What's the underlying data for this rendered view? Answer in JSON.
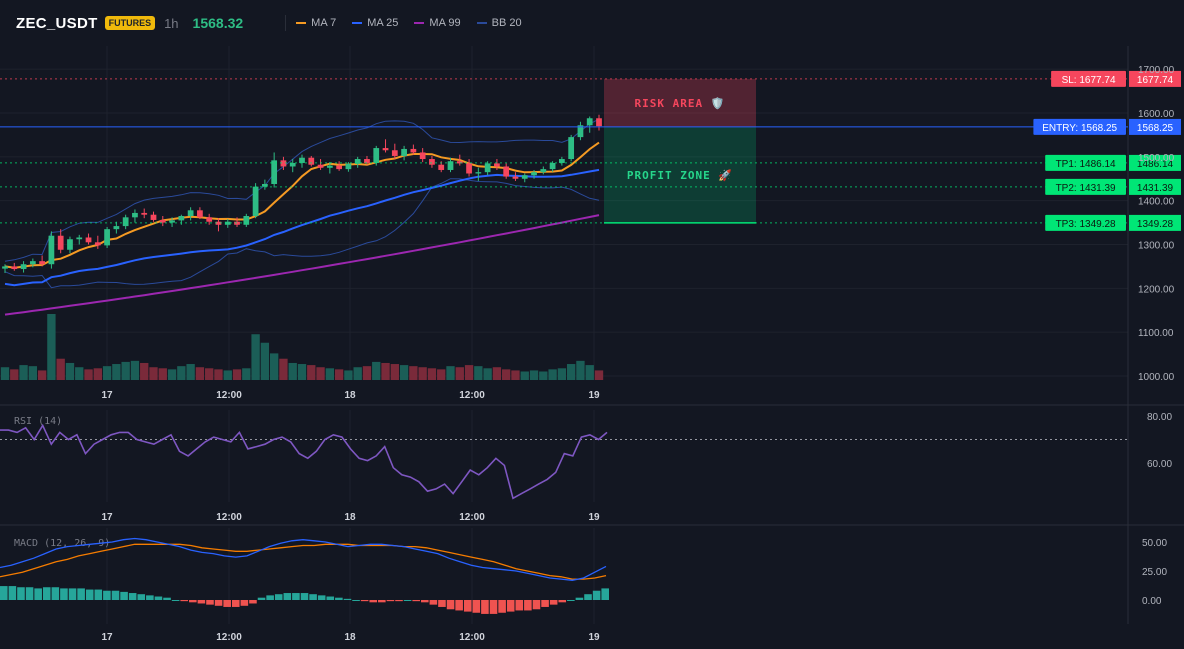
{
  "header": {
    "symbol": "ZEC_USDT",
    "badge": "FUTURES",
    "interval": "1h",
    "last_price": "1568.32",
    "indicators": [
      {
        "name": "MA 7",
        "color": "#f59a23"
      },
      {
        "name": "MA 25",
        "color": "#2962ff"
      },
      {
        "name": "MA 99",
        "color": "#9c27b0"
      },
      {
        "name": "BB 20",
        "color": "#2a4a9a"
      }
    ]
  },
  "colors": {
    "up": "#26a69a",
    "up_candle": "#2ebd85",
    "down": "#f6465d",
    "up_volume": "#1b5e57",
    "down_volume": "#7a2a3a",
    "entry": "#2962ff",
    "sl": "#f6465d",
    "tp": "#00e676",
    "rsi": "#7e57c2",
    "macd": "#2962ff",
    "signal": "#f57c00"
  },
  "trade": {
    "sl_text": "SL: 1677.74",
    "entry_text": "ENTRY: 1568.25",
    "tp1_text": "TP1: 1486.14",
    "tp2_text": "TP2: 1431.39",
    "tp3_text": "TP3: 1349.28",
    "risk_label": "RISK AREA 🛡️",
    "profit_label": "PROFIT ZONE 🚀"
  },
  "chart_data": [
    {
      "type": "candlestick",
      "pane": "price",
      "y_ticks": [
        "1700.00",
        "1600.00",
        "1500.00",
        "1400.00",
        "1300.00",
        "1200.00",
        "1100.00",
        "1000.00"
      ],
      "x_ticks": [
        "17",
        "12:00",
        "18",
        "12:00",
        "19"
      ],
      "ylim": [
        990,
        1710
      ],
      "levels": {
        "sl": 1677.74,
        "entry": 1568.25,
        "tp1": 1486.14,
        "tp2": 1431.39,
        "tp3": 1349.28
      },
      "level_values": {
        "sl": "1677.74",
        "entry": "1568.25",
        "tp1": "1486.14",
        "tp2": "1431.39",
        "tp3": "1349.28"
      },
      "ohlc": [
        [
          1245,
          1255,
          1235,
          1250
        ],
        [
          1250,
          1258,
          1240,
          1244
        ],
        [
          1244,
          1262,
          1236,
          1255
        ],
        [
          1255,
          1268,
          1248,
          1262
        ],
        [
          1262,
          1275,
          1250,
          1255
        ],
        [
          1255,
          1330,
          1245,
          1320
        ],
        [
          1320,
          1335,
          1280,
          1288
        ],
        [
          1288,
          1318,
          1280,
          1312
        ],
        [
          1312,
          1322,
          1300,
          1316
        ],
        [
          1316,
          1325,
          1300,
          1305
        ],
        [
          1305,
          1320,
          1290,
          1298
        ],
        [
          1298,
          1340,
          1292,
          1335
        ],
        [
          1335,
          1352,
          1325,
          1342
        ],
        [
          1342,
          1368,
          1335,
          1362
        ],
        [
          1362,
          1380,
          1350,
          1372
        ],
        [
          1372,
          1382,
          1360,
          1368
        ],
        [
          1368,
          1375,
          1352,
          1356
        ],
        [
          1356,
          1365,
          1342,
          1350
        ],
        [
          1350,
          1362,
          1340,
          1355
        ],
        [
          1355,
          1368,
          1345,
          1365
        ],
        [
          1365,
          1385,
          1355,
          1378
        ],
        [
          1378,
          1385,
          1358,
          1362
        ],
        [
          1362,
          1370,
          1345,
          1352
        ],
        [
          1352,
          1360,
          1330,
          1345
        ],
        [
          1345,
          1358,
          1338,
          1352
        ],
        [
          1352,
          1362,
          1340,
          1345
        ],
        [
          1345,
          1370,
          1340,
          1365
        ],
        [
          1365,
          1440,
          1360,
          1432
        ],
        [
          1432,
          1448,
          1425,
          1438
        ],
        [
          1438,
          1510,
          1430,
          1492
        ],
        [
          1492,
          1500,
          1470,
          1478
        ],
        [
          1478,
          1495,
          1465,
          1486
        ],
        [
          1486,
          1505,
          1475,
          1498
        ],
        [
          1498,
          1502,
          1478,
          1482
        ],
        [
          1482,
          1495,
          1470,
          1475
        ],
        [
          1475,
          1488,
          1462,
          1480
        ],
        [
          1480,
          1490,
          1468,
          1472
        ],
        [
          1472,
          1488,
          1466,
          1484
        ],
        [
          1484,
          1500,
          1475,
          1495
        ],
        [
          1495,
          1502,
          1482,
          1486
        ],
        [
          1486,
          1525,
          1480,
          1520
        ],
        [
          1520,
          1540,
          1510,
          1515
        ],
        [
          1515,
          1530,
          1495,
          1502
        ],
        [
          1502,
          1525,
          1492,
          1518
        ],
        [
          1518,
          1528,
          1505,
          1510
        ],
        [
          1510,
          1520,
          1488,
          1495
        ],
        [
          1495,
          1502,
          1475,
          1482
        ],
        [
          1482,
          1490,
          1465,
          1470
        ],
        [
          1470,
          1498,
          1465,
          1490
        ],
        [
          1490,
          1505,
          1480,
          1485
        ],
        [
          1485,
          1495,
          1455,
          1462
        ],
        [
          1462,
          1475,
          1445,
          1465
        ],
        [
          1465,
          1490,
          1458,
          1485
        ],
        [
          1485,
          1495,
          1470,
          1478
        ],
        [
          1478,
          1485,
          1450,
          1455
        ],
        [
          1455,
          1465,
          1445,
          1450
        ],
        [
          1450,
          1462,
          1442,
          1458
        ],
        [
          1458,
          1470,
          1450,
          1465
        ],
        [
          1465,
          1478,
          1460,
          1472
        ],
        [
          1472,
          1490,
          1466,
          1486
        ],
        [
          1486,
          1500,
          1480,
          1495
        ],
        [
          1495,
          1550,
          1490,
          1545
        ],
        [
          1545,
          1580,
          1538,
          1572
        ],
        [
          1572,
          1592,
          1555,
          1588
        ],
        [
          1588,
          1596,
          1560,
          1570
        ]
      ],
      "volume": [
        12,
        10,
        14,
        13,
        9,
        62,
        20,
        16,
        12,
        10,
        11,
        13,
        15,
        17,
        18,
        16,
        12,
        11,
        10,
        13,
        15,
        12,
        11,
        10,
        9,
        10,
        11,
        43,
        35,
        25,
        20,
        16,
        15,
        14,
        12,
        11,
        10,
        9,
        12,
        13,
        17,
        16,
        15,
        14,
        13,
        12,
        11,
        10,
        13,
        12,
        14,
        13,
        11,
        12,
        10,
        9,
        8,
        9,
        8,
        10,
        11,
        15,
        18,
        14,
        9
      ]
    },
    {
      "type": "line",
      "pane": "rsi",
      "title": "RSI (14)",
      "y_ticks": [
        "80.00",
        "60.00"
      ],
      "x_ticks": [
        "17",
        "12:00",
        "18",
        "12:00",
        "19"
      ],
      "ylim": [
        40,
        85
      ],
      "overbought": 70,
      "values": [
        74,
        74,
        73,
        75,
        70,
        76,
        68,
        73,
        70,
        72,
        64,
        68,
        70,
        72,
        73,
        73,
        70,
        69,
        68,
        70,
        72,
        65,
        63,
        66,
        69,
        71,
        70,
        69,
        73,
        66,
        67,
        68,
        70,
        71,
        69,
        64,
        62,
        65,
        70,
        72,
        71,
        66,
        62,
        61,
        63,
        67,
        58,
        55,
        54,
        52,
        48,
        49,
        51,
        47,
        52,
        57,
        55,
        58,
        62,
        59,
        45,
        47,
        49,
        51,
        53,
        56,
        64,
        63,
        71,
        72,
        70,
        73
      ]
    },
    {
      "type": "bar+line",
      "pane": "macd",
      "title": "MACD (12, 26, 9)",
      "y_ticks": [
        "50.00",
        "25.00",
        "0.00"
      ],
      "x_ticks": [
        "17",
        "12:00",
        "18",
        "12:00",
        "19"
      ],
      "ylim": [
        -20,
        60
      ],
      "macd": [
        28,
        30,
        33,
        36,
        40,
        44,
        46,
        47,
        48,
        49,
        50,
        52,
        53,
        52,
        50,
        48,
        46,
        43,
        41,
        40,
        38,
        37,
        38,
        42,
        46,
        49,
        51,
        52,
        51,
        50,
        48,
        46,
        47,
        48,
        48,
        47,
        46,
        44,
        42,
        40,
        36,
        33,
        30,
        28,
        27,
        26,
        25,
        23,
        21,
        19,
        18,
        17,
        19,
        24,
        29
      ],
      "signal": [
        20,
        22,
        24,
        27,
        30,
        33,
        35,
        38,
        40,
        42,
        44,
        46,
        48,
        48,
        48,
        48,
        48,
        47,
        45,
        44,
        43,
        42,
        42,
        43,
        44,
        45,
        46,
        47,
        47,
        48,
        48,
        48,
        47,
        47,
        47,
        47,
        46,
        46,
        45,
        43,
        41,
        39,
        37,
        35,
        33,
        30,
        27,
        25,
        23,
        21,
        20,
        18,
        18,
        19,
        21
      ],
      "histogram": [
        12,
        12,
        11,
        11,
        10,
        11,
        11,
        10,
        10,
        10,
        9,
        9,
        8,
        8,
        7,
        6,
        5,
        4,
        3,
        2,
        0,
        -1,
        -2,
        -3,
        -4,
        -5,
        -6,
        -6,
        -5,
        -3,
        2,
        4,
        5,
        6,
        6,
        6,
        5,
        4,
        3,
        2,
        1,
        0,
        -1,
        -2,
        -2,
        -1,
        -1,
        0,
        -1,
        -2,
        -4,
        -6,
        -8,
        -9,
        -10,
        -11,
        -12,
        -12,
        -11,
        -10,
        -9,
        -9,
        -8,
        -6,
        -4,
        -2,
        0,
        2,
        5,
        8,
        10
      ]
    }
  ]
}
